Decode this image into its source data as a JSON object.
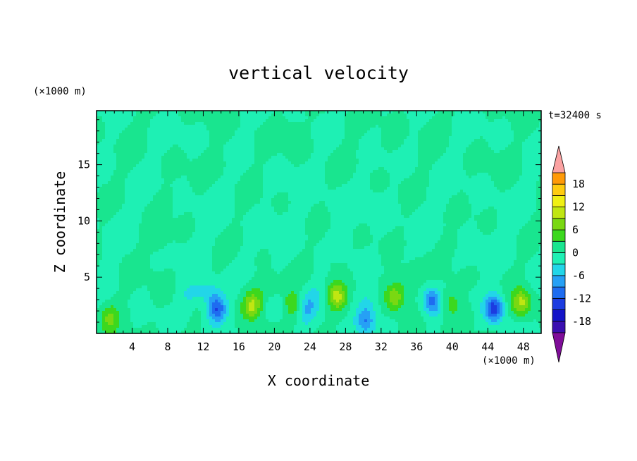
{
  "chart_data": {
    "type": "heatmap",
    "title": "vertical velocity",
    "xlabel": "X coordinate",
    "ylabel": "Z coordinate",
    "x_unit": "(×1000 m)",
    "y_unit": "(×1000 m)",
    "time_label": "t=32400 s",
    "xlim": [
      0,
      50
    ],
    "ylim": [
      0,
      19.8
    ],
    "x_ticks": [
      4,
      8,
      12,
      16,
      20,
      24,
      28,
      32,
      36,
      40,
      44,
      48
    ],
    "x_tick_labels": [
      "4",
      "8",
      "12",
      "16",
      "20",
      "24",
      "28",
      "32",
      "36",
      "40",
      "44",
      "48"
    ],
    "y_ticks": [
      5,
      10,
      15
    ],
    "y_tick_labels": [
      "5",
      "10",
      "15"
    ],
    "colorbar": {
      "min": -21,
      "max": 21,
      "step": 3,
      "extend": "both",
      "tick_values": [
        18,
        12,
        6,
        0,
        -6,
        -12,
        -18
      ],
      "tick_labels": [
        "18",
        "12",
        "6",
        "0",
        "-6",
        "-12",
        "-18"
      ],
      "colors": [
        "#7f0d99",
        "#3a0fb0",
        "#1414c8",
        "#1c3ce0",
        "#1e6cf0",
        "#26a0f5",
        "#22d6e8",
        "#1ef0b4",
        "#19e58f",
        "#3cd81e",
        "#7ad812",
        "#c0e612",
        "#f0f014",
        "#ffcc10",
        "#ff9a08",
        "#ff6a10",
        "#ff3a18",
        "#ff1414",
        "#fba2a2"
      ]
    },
    "features": [
      {
        "x": 1.5,
        "z": 1.3,
        "w": 6
      },
      {
        "x": 6.5,
        "z": 8.5,
        "w": 3
      },
      {
        "x": 7.5,
        "z": 3.5,
        "w": 1.5
      },
      {
        "x": 10.5,
        "z": 3.5,
        "w": -3
      },
      {
        "x": 13.5,
        "z": 2.2,
        "w": -12
      },
      {
        "x": 12.5,
        "z": 3.8,
        "w": -4
      },
      {
        "x": 17.5,
        "z": 2.5,
        "w": 10
      },
      {
        "x": 19.2,
        "z": 4.0,
        "w": 3
      },
      {
        "x": 20.5,
        "z": 2.2,
        "w": -4
      },
      {
        "x": 22.0,
        "z": 2.5,
        "w": 7
      },
      {
        "x": 23.5,
        "z": 2.0,
        "w": -5
      },
      {
        "x": 24.5,
        "z": 3.2,
        "w": -3
      },
      {
        "x": 27.0,
        "z": 3.3,
        "w": 10
      },
      {
        "x": 30.2,
        "z": 1.2,
        "w": -9
      },
      {
        "x": 30.5,
        "z": 3.0,
        "w": -3
      },
      {
        "x": 33.5,
        "z": 3.2,
        "w": 9
      },
      {
        "x": 35.0,
        "z": 4.6,
        "w": 3
      },
      {
        "x": 37.7,
        "z": 2.8,
        "w": -10
      },
      {
        "x": 39.8,
        "z": 2.8,
        "w": 5
      },
      {
        "x": 41.5,
        "z": 1.6,
        "w": 2
      },
      {
        "x": 44.7,
        "z": 2.2,
        "w": -14
      },
      {
        "x": 47.8,
        "z": 2.7,
        "w": 10
      },
      {
        "x": 26.5,
        "z": 6.3,
        "w": 1.5
      },
      {
        "x": 36.0,
        "z": 5.8,
        "w": 1.5
      },
      {
        "x": 27.0,
        "z": 11.5,
        "w": -1.5
      },
      {
        "x": 33.0,
        "z": 17.0,
        "w": 1
      },
      {
        "x": 14.0,
        "z": 15.0,
        "w": 1
      },
      {
        "x": 46.0,
        "z": 14.0,
        "w": 1
      },
      {
        "x": 4.0,
        "z": 6.0,
        "w": 1
      },
      {
        "x": 18.0,
        "z": 9.0,
        "w": 1
      },
      {
        "x": 40.0,
        "z": 8.0,
        "w": 1
      },
      {
        "x": 8.0,
        "z": 12.0,
        "w": 1
      },
      {
        "x": 22.0,
        "z": 18.0,
        "w": 1
      }
    ]
  }
}
